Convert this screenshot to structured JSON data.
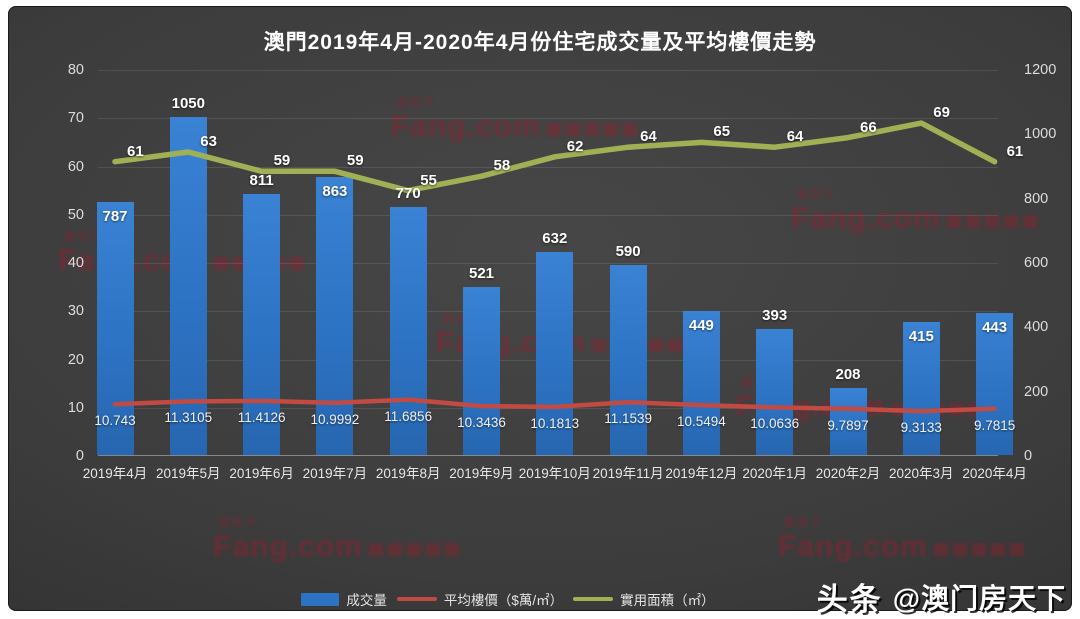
{
  "title": "澳門2019年4月-2020年4月份住宅成交量及平均樓價走勢",
  "watermark": {
    "main": "Fang.com"
  },
  "branding": {
    "logo": "头条",
    "handle": "@澳门房天下"
  },
  "chart_data": {
    "type": "bar",
    "title": "澳門2019年4月-2020年4月份住宅成交量及平均樓價走勢",
    "categories": [
      "2019年4月",
      "2019年5月",
      "2019年6月",
      "2019年7月",
      "2019年8月",
      "2019年9月",
      "2019年10月",
      "2019年11月",
      "2019年12月",
      "2020年1月",
      "2020年2月",
      "2020年3月",
      "2020年4月"
    ],
    "series": [
      {
        "name": "成交量",
        "type": "bar",
        "axis": "right",
        "color": "#2d73c4",
        "values": [
          787,
          1050,
          811,
          863,
          770,
          521,
          632,
          590,
          449,
          393,
          208,
          415,
          443
        ],
        "label_inside": [
          true,
          false,
          false,
          true,
          false,
          false,
          false,
          false,
          true,
          false,
          false,
          true,
          true
        ]
      },
      {
        "name": "平均樓價（$萬/㎡）",
        "type": "line",
        "axis": "left",
        "color": "#c14b42",
        "values": [
          10.743,
          11.3105,
          11.4126,
          10.9992,
          11.6856,
          10.3436,
          10.1813,
          11.1539,
          10.5494,
          10.0636,
          9.7897,
          9.3133,
          9.7815
        ]
      },
      {
        "name": "實用面積（㎡）",
        "type": "line",
        "axis": "left",
        "color": "#a0b155",
        "values": [
          61,
          63,
          59,
          59,
          55,
          58,
          62,
          64,
          65,
          64,
          66,
          69,
          61
        ]
      }
    ],
    "left_axis": {
      "min": 0,
      "max": 80,
      "step": 10,
      "ticks": [
        0,
        10,
        20,
        30,
        40,
        50,
        60,
        70,
        80
      ]
    },
    "right_axis": {
      "min": 0,
      "max": 1200,
      "step": 200,
      "ticks": [
        0,
        200,
        400,
        600,
        800,
        1000,
        1200
      ]
    },
    "legend": [
      "成交量",
      "平均樓價（$萬/㎡）",
      "實用面積（㎡）"
    ],
    "grid": "horizontal",
    "legend_position": "bottom-center"
  }
}
